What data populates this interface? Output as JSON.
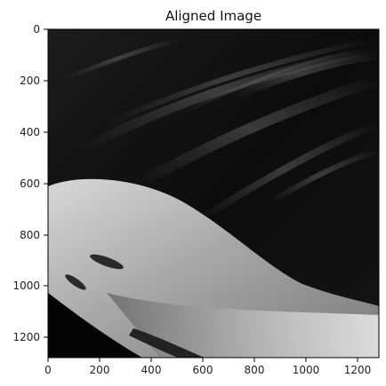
{
  "figure": {
    "title": "Aligned Image",
    "image_description_ref": "grayscale-aligned-face",
    "x_ticks": [
      "0",
      "200",
      "400",
      "600",
      "800",
      "1000",
      "1200"
    ],
    "y_ticks": [
      "0",
      "200",
      "400",
      "600",
      "800",
      "1000",
      "1200"
    ],
    "x_range": [
      0,
      1280
    ],
    "y_range": [
      0,
      1280
    ],
    "colors": {
      "frame": "#000000",
      "tick_text": "#222222",
      "background": "#ffffff"
    }
  }
}
